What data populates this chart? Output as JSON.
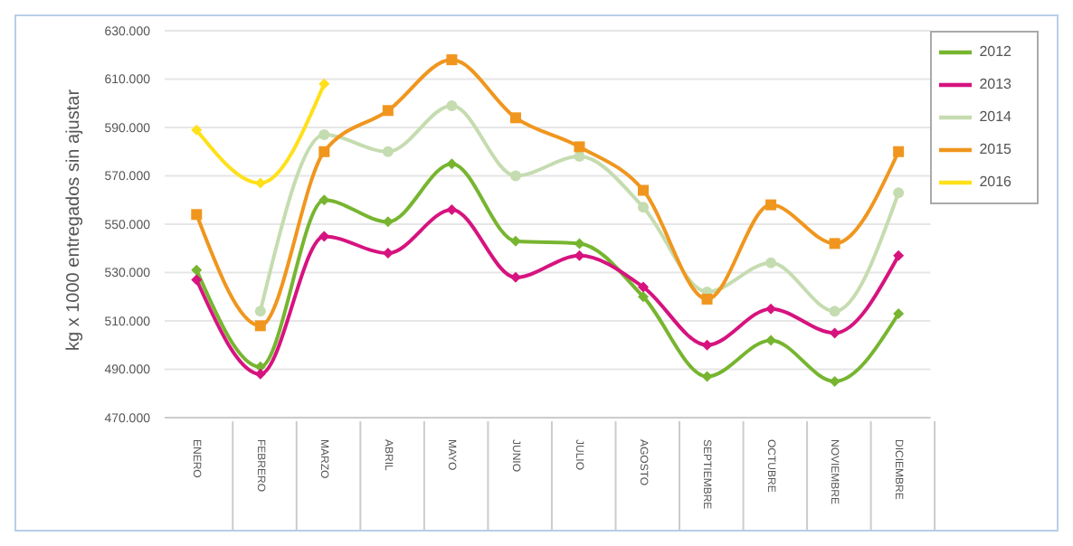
{
  "chart_data": {
    "type": "line",
    "ylabel": "kg x 1000 entregados sin ajustar",
    "categories": [
      "ENERO",
      "FEBRERO",
      "MARZO",
      "ABRIL",
      "MAYO",
      "JUNIO",
      "JULIO",
      "AGOSTO",
      "SEPTIEMBRE",
      "OCTUBRE",
      "NOVIEMBRE",
      "DICIEMBRE"
    ],
    "series": [
      {
        "name": "2012",
        "color": "#77b530",
        "marker": "diamond",
        "values": [
          531000,
          491000,
          560000,
          551000,
          575000,
          543000,
          542000,
          520000,
          487000,
          502000,
          485000,
          513000
        ]
      },
      {
        "name": "2013",
        "color": "#d6137f",
        "marker": "diamond",
        "values": [
          527000,
          488000,
          545000,
          538000,
          556000,
          528000,
          537000,
          524000,
          500000,
          515000,
          505000,
          537000
        ]
      },
      {
        "name": "2014",
        "color": "#c5dcb0",
        "marker": "circle",
        "values": [
          null,
          514000,
          587000,
          580000,
          599000,
          570000,
          578000,
          557000,
          522000,
          534000,
          514000,
          563000
        ]
      },
      {
        "name": "2015",
        "color": "#f0961e",
        "marker": "square",
        "values": [
          554000,
          508000,
          580000,
          597000,
          618000,
          594000,
          582000,
          564000,
          519000,
          558000,
          542000,
          580000
        ]
      },
      {
        "name": "2016",
        "color": "#ffe01a",
        "marker": "diamond",
        "values": [
          589000,
          567000,
          608000,
          null,
          null,
          null,
          null,
          null,
          null,
          null,
          null,
          null
        ]
      }
    ],
    "ylim": [
      470000,
      630000
    ],
    "yticks": [
      {
        "value": 470000,
        "label": "470.000"
      },
      {
        "value": 490000,
        "label": "490.000"
      },
      {
        "value": 510000,
        "label": "510.000"
      },
      {
        "value": 530000,
        "label": "530.000"
      },
      {
        "value": 550000,
        "label": "550.000"
      },
      {
        "value": 570000,
        "label": "570.000"
      },
      {
        "value": 590000,
        "label": "590.000"
      },
      {
        "value": 610000,
        "label": "610.000"
      },
      {
        "value": 630000,
        "label": "630.000"
      }
    ],
    "grid": "y",
    "legend": "top right",
    "line_style": "solid"
  }
}
